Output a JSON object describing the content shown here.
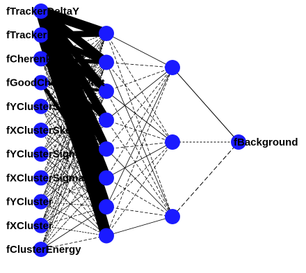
{
  "colors": {
    "node": "#1a1aff",
    "edge": "#000000",
    "background": "#ffffff",
    "label": "#000000"
  },
  "network": {
    "inputs": [
      {
        "label": "fTrackerDeltaY"
      },
      {
        "label": "fTrackerDeltaX"
      },
      {
        "label": "fCherenkovTDC"
      },
      {
        "label": "fGoodCherenkovHit"
      },
      {
        "label": "fYClusterSkew"
      },
      {
        "label": "fXClusterSkew"
      },
      {
        "label": "fYClusterSigma"
      },
      {
        "label": "fXClusterSigma"
      },
      {
        "label": "fYCluster"
      },
      {
        "label": "fXCluster"
      },
      {
        "label": "fClusterEnergy"
      }
    ],
    "hidden1_count": 8,
    "hidden2_count": 3,
    "output": {
      "label": "fBackground"
    }
  }
}
